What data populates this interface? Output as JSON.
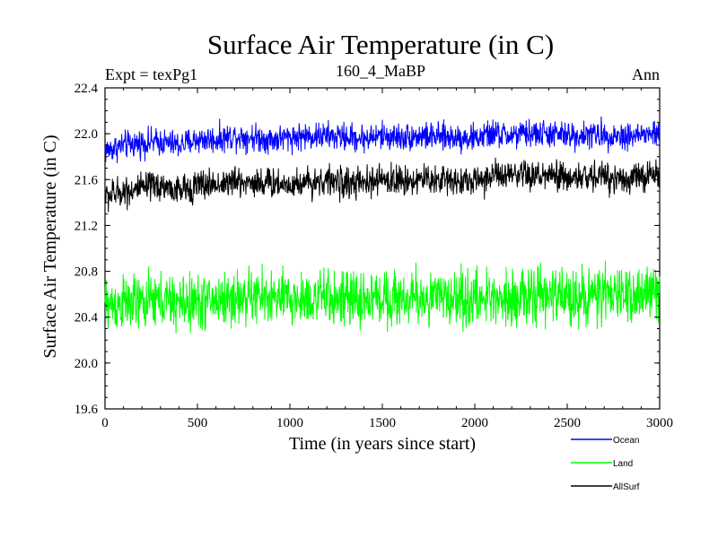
{
  "chart_data": {
    "type": "line",
    "title": "Surface Air Temperature (in C)",
    "subtitle_left": "Expt = texPg1",
    "subtitle_center": "160_4_MaBP",
    "subtitle_right": "Ann",
    "xlabel": "Time (in years since start)",
    "ylabel": "Surface Air Temperature (in C)",
    "xlim": [
      0,
      3000
    ],
    "ylim": [
      19.6,
      22.4
    ],
    "x_ticks": [
      0,
      500,
      1000,
      1500,
      2000,
      2500,
      3000
    ],
    "x_tick_labels": [
      "0",
      "500",
      "1000",
      "1500",
      "2000",
      "2500",
      "3000"
    ],
    "y_ticks": [
      19.6,
      20.0,
      20.4,
      20.8,
      21.2,
      21.6,
      22.0,
      22.4
    ],
    "y_tick_labels": [
      "19.6",
      "20.0",
      "20.4",
      "20.8",
      "21.2",
      "21.6",
      "22.0",
      "22.4"
    ],
    "grid": false,
    "legend_position": "bottom-right",
    "series": [
      {
        "name": "Ocean",
        "color": "#0000ff",
        "x": [
          0,
          100,
          200,
          300,
          400,
          500,
          600,
          700,
          800,
          900,
          1000,
          1100,
          1200,
          1300,
          1400,
          1500,
          1600,
          1700,
          1800,
          1900,
          2000,
          2100,
          2200,
          2300,
          2400,
          2500,
          2600,
          2700,
          2800,
          2900,
          3000
        ],
        "values": [
          21.85,
          21.9,
          21.92,
          21.93,
          21.9,
          21.95,
          21.95,
          21.98,
          21.97,
          21.95,
          21.97,
          21.98,
          21.98,
          21.97,
          21.96,
          21.98,
          21.97,
          21.98,
          21.97,
          21.97,
          21.96,
          22.0,
          21.98,
          22.0,
          22.0,
          21.98,
          21.99,
          21.99,
          21.98,
          21.99,
          22.0
        ],
        "noise_amplitude": 0.18
      },
      {
        "name": "Land",
        "color": "#00ff00",
        "x": [
          0,
          100,
          200,
          300,
          400,
          500,
          600,
          700,
          800,
          900,
          1000,
          1100,
          1200,
          1300,
          1400,
          1500,
          1600,
          1700,
          1800,
          1900,
          2000,
          2100,
          2200,
          2300,
          2400,
          2500,
          2600,
          2700,
          2800,
          2900,
          3000
        ],
        "values": [
          20.5,
          20.52,
          20.52,
          20.55,
          20.52,
          20.53,
          20.55,
          20.56,
          20.58,
          20.57,
          20.55,
          20.56,
          20.57,
          20.55,
          20.55,
          20.57,
          20.56,
          20.57,
          20.56,
          20.57,
          20.55,
          20.58,
          20.58,
          20.57,
          20.59,
          20.58,
          20.59,
          20.58,
          20.6,
          20.6,
          20.62
        ],
        "noise_amplitude": 0.36
      },
      {
        "name": "AllSurf",
        "color": "#000000",
        "x": [
          0,
          100,
          200,
          300,
          400,
          500,
          600,
          700,
          800,
          900,
          1000,
          1100,
          1200,
          1300,
          1400,
          1500,
          1600,
          1700,
          1800,
          1900,
          2000,
          2100,
          2200,
          2300,
          2400,
          2500,
          2600,
          2700,
          2800,
          2900,
          3000
        ],
        "values": [
          21.45,
          21.5,
          21.52,
          21.55,
          21.5,
          21.55,
          21.56,
          21.58,
          21.58,
          21.57,
          21.56,
          21.58,
          21.59,
          21.57,
          21.56,
          21.6,
          21.59,
          21.6,
          21.6,
          21.6,
          21.58,
          21.64,
          21.62,
          21.63,
          21.63,
          21.61,
          21.62,
          21.63,
          21.61,
          21.62,
          21.65
        ],
        "noise_amplitude": 0.2
      }
    ]
  }
}
